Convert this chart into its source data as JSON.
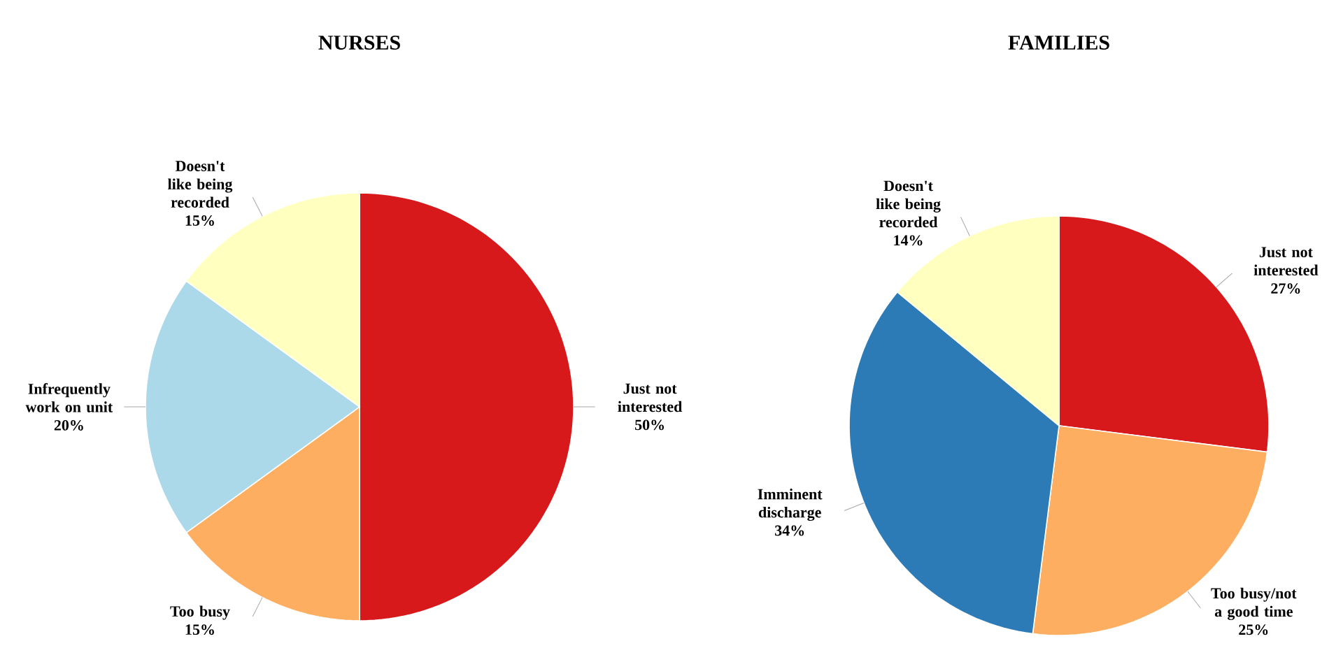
{
  "chart_data": [
    {
      "type": "pie",
      "title": "NURSES",
      "categories": [
        "Just not interested",
        "Too busy",
        "Infrequently work on unit",
        "Doesn't like being recorded"
      ],
      "values": [
        50,
        15,
        20,
        15
      ],
      "colors": [
        "#d7191c",
        "#fdae61",
        "#abd9e9",
        "#ffffbf"
      ],
      "value_labels": [
        "50%",
        "15%",
        "20%",
        "15%"
      ]
    },
    {
      "type": "pie",
      "title": "FAMILIES",
      "categories": [
        "Just not interested",
        "Too busy/not a good time",
        "Imminent discharge",
        "Doesn't like being recorded"
      ],
      "values": [
        27,
        25,
        34,
        14
      ],
      "colors": [
        "#d7191c",
        "#fdae61",
        "#2c7bb6",
        "#ffffbf"
      ],
      "value_labels": [
        "27%",
        "25%",
        "34%",
        "14%"
      ]
    }
  ]
}
